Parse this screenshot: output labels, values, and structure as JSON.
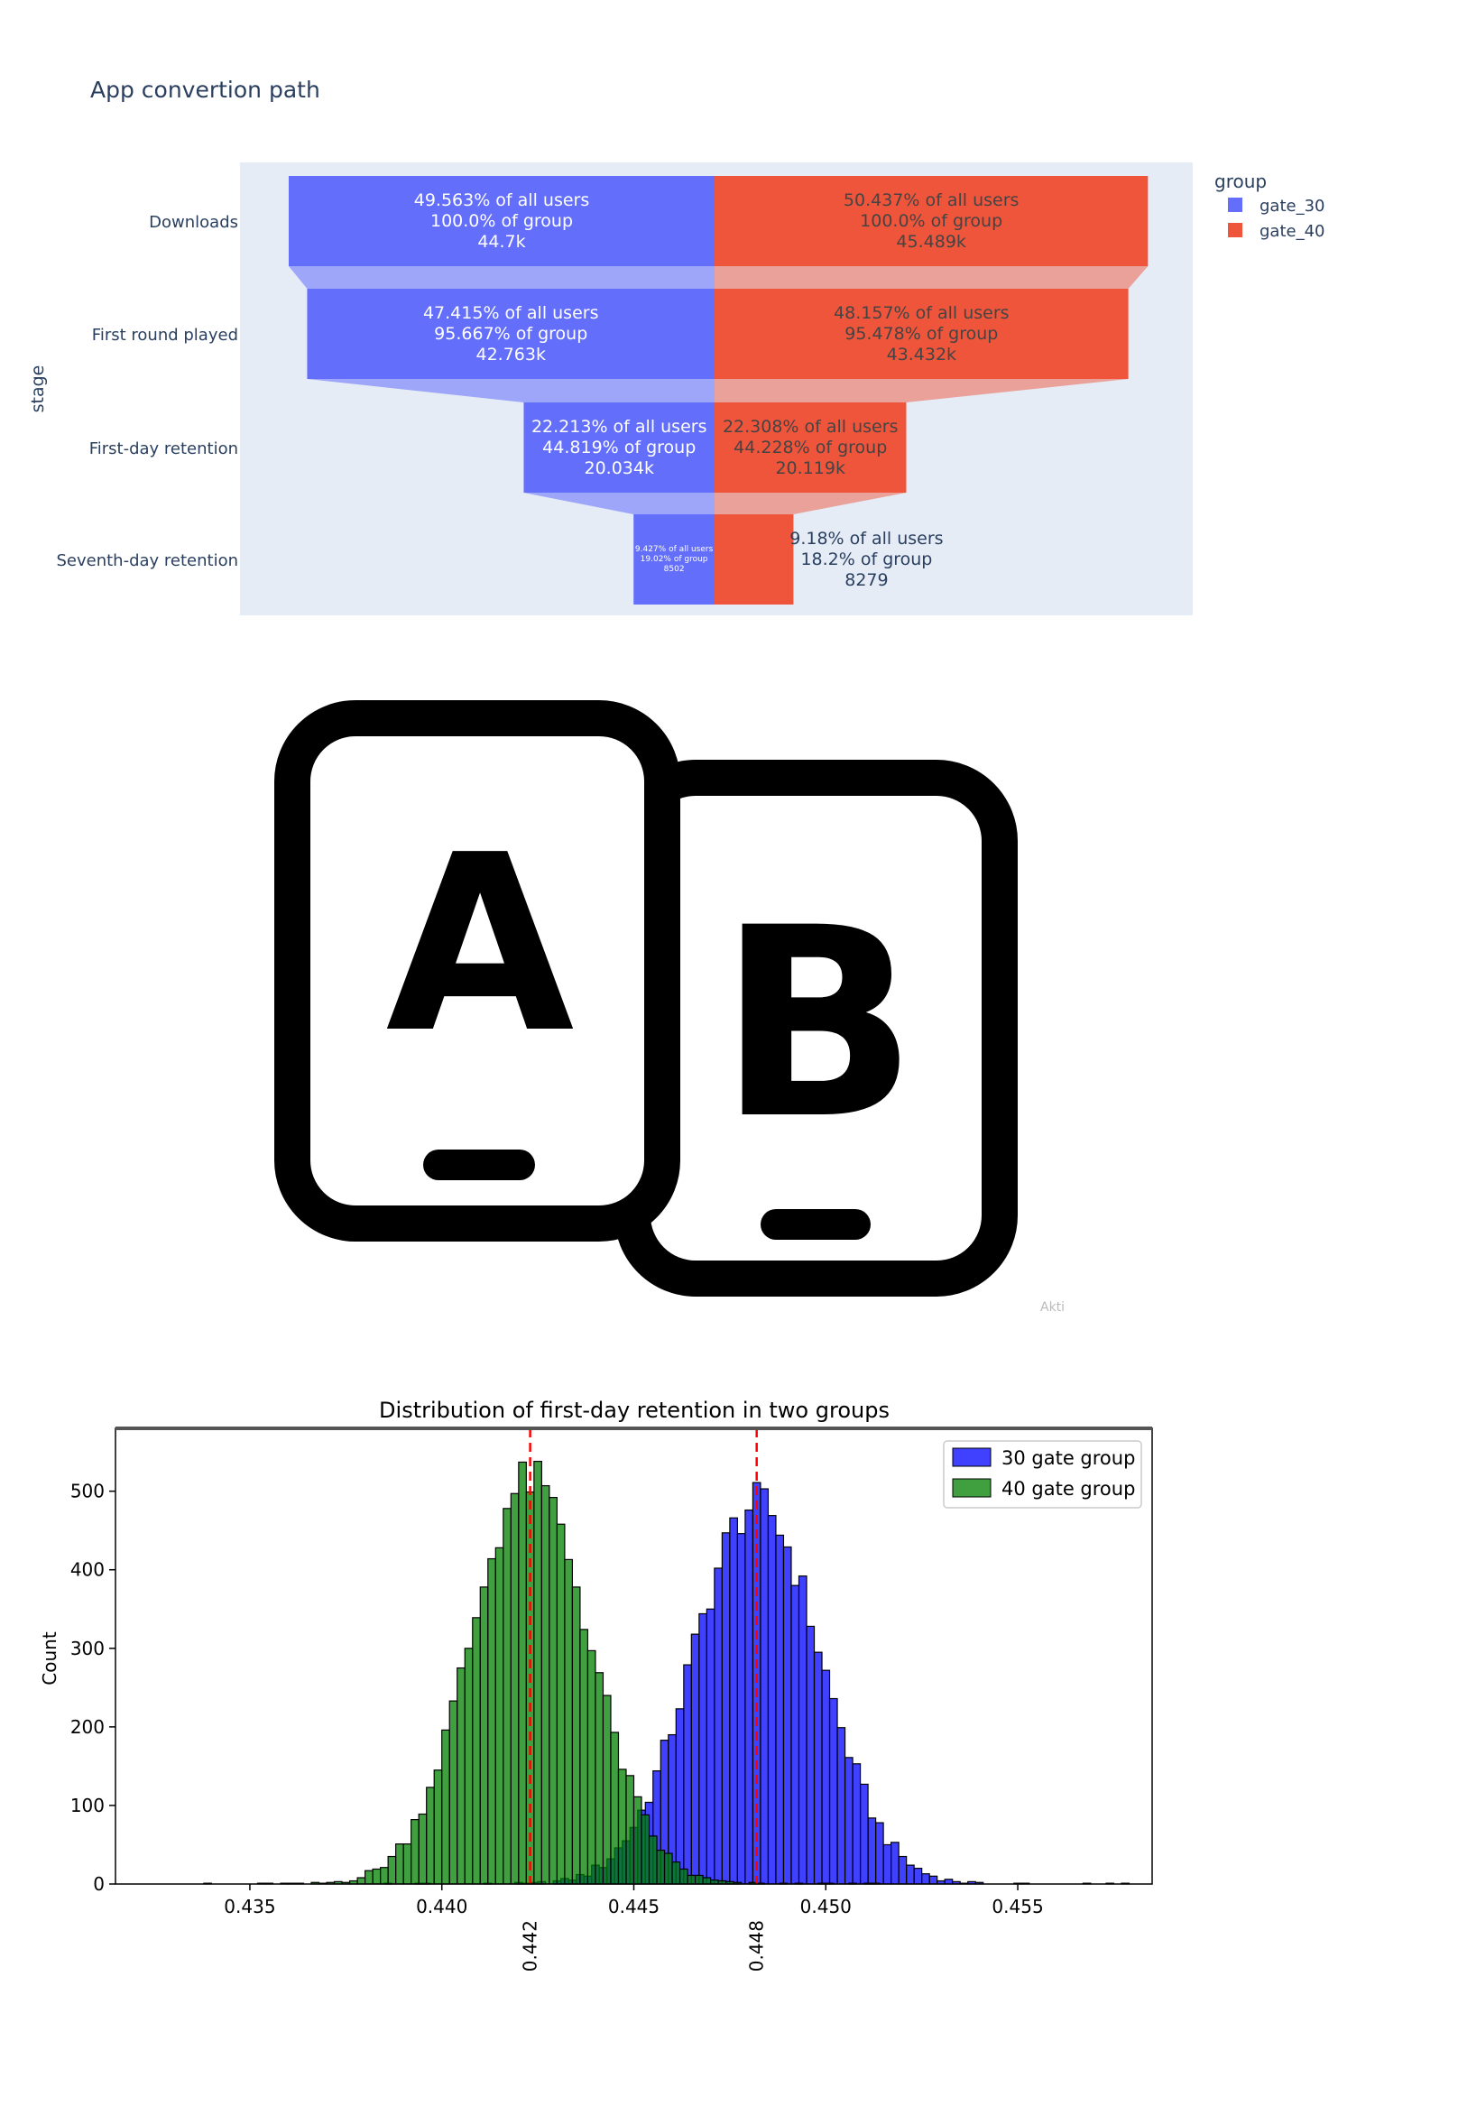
{
  "funnel": {
    "title": "App convertion path",
    "ylabel": "stage",
    "legend_title": "group",
    "colors": {
      "gate_30": "#636efa",
      "gate_40": "#ef553b"
    },
    "chart_data": {
      "type": "funnel",
      "title": "App convertion path",
      "ylabel": "stage",
      "categories": [
        "Downloads",
        "First round played",
        "First-day retention",
        "Seventh-day retention"
      ],
      "series": [
        {
          "name": "gate_30",
          "values": [
            44700,
            42763,
            20034,
            8502
          ],
          "labels": [
            [
              "49.563% of all users",
              "100.0% of group",
              "44.7k"
            ],
            [
              "47.415% of all users",
              "95.667% of group",
              "42.763k"
            ],
            [
              "22.213% of all users",
              "44.819% of group",
              "20.034k"
            ],
            [
              "9.427% of all users",
              "19.02% of group",
              "8502"
            ]
          ]
        },
        {
          "name": "gate_40",
          "values": [
            45489,
            43432,
            20119,
            8279
          ],
          "labels": [
            [
              "50.437% of all users",
              "100.0% of group",
              "45.489k"
            ],
            [
              "48.157% of all users",
              "95.478% of group",
              "43.432k"
            ],
            [
              "22.308% of all users",
              "44.228% of group",
              "20.119k"
            ],
            [
              "9.18% of all users",
              "18.2% of group",
              "8279"
            ]
          ]
        }
      ]
    }
  },
  "logo": {
    "letter_a": "A",
    "letter_b": "B",
    "watermark": "Akti"
  },
  "histogram": {
    "chart_data": {
      "type": "histogram",
      "title": "Distribution of first-day retention in two groups",
      "ylabel": "Count",
      "xlabel": "",
      "xlim": [
        0.4315,
        0.4585
      ],
      "ylim": [
        0,
        580
      ],
      "xticks": [
        "0.435",
        "0.440",
        "0.445",
        "0.450",
        "0.455"
      ],
      "yticks": [
        "0",
        "100",
        "200",
        "300",
        "400",
        "500"
      ],
      "bin_width": 0.0002,
      "legend_placement": "top-right",
      "series": [
        {
          "name": "30 gate group",
          "color": "#0000ff",
          "mean": 0.4482,
          "sd": 0.00165,
          "total": 10000
        },
        {
          "name": "40 gate group",
          "color": "#008000",
          "mean": 0.4423,
          "sd": 0.00155,
          "total": 10000
        }
      ],
      "mean_lines": [
        {
          "value": 0.4423,
          "label": "0.442"
        },
        {
          "value": 0.4482,
          "label": "0.448"
        }
      ],
      "mean_line_color": "#ff0000"
    }
  }
}
